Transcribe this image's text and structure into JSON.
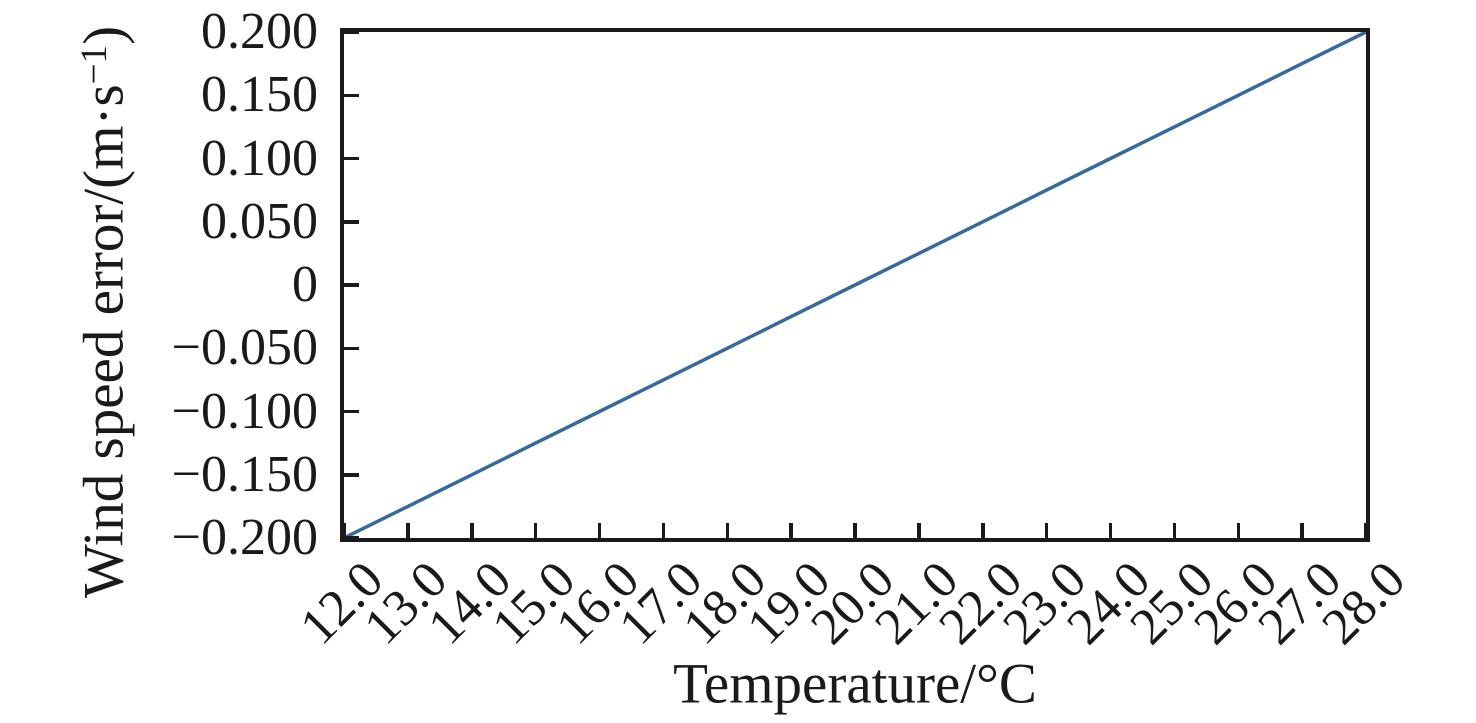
{
  "chart_data": {
    "type": "line",
    "title": "",
    "xlabel": "Temperature/°C",
    "ylabel": "Wind speed error/(m·s−1)",
    "ylabel_parts": {
      "prefix": "Wind speed error/(m·s",
      "superscript": "−1",
      "suffix": ")"
    },
    "xlim": [
      12.0,
      28.0
    ],
    "ylim": [
      -0.2,
      0.2
    ],
    "grid": false,
    "legend_position": "none",
    "x_tick_labels": [
      "12.0",
      "13.0",
      "14.0",
      "15.0",
      "16.0",
      "17.0",
      "18.0",
      "19.0",
      "20.0",
      "21.0",
      "22.0",
      "23.0",
      "24.0",
      "25.0",
      "26.0",
      "27.0",
      "28.0"
    ],
    "y_tick_labels": [
      "0.200",
      "0.150",
      "0.100",
      "0.050",
      "0",
      "−0.050",
      "−0.100",
      "−0.150",
      "−0.200"
    ],
    "y_tick_values": [
      0.2,
      0.15,
      0.1,
      0.05,
      0,
      -0.05,
      -0.1,
      -0.15,
      -0.2
    ],
    "series": [
      {
        "name": "wind-speed-error-vs-temperature",
        "color": "#38699C",
        "x": [
          12.0,
          13.0,
          14.0,
          15.0,
          16.0,
          17.0,
          18.0,
          19.0,
          20.0,
          21.0,
          22.0,
          23.0,
          24.0,
          25.0,
          26.0,
          27.0,
          28.0
        ],
        "y": [
          -0.2,
          -0.175,
          -0.15,
          -0.125,
          -0.1,
          -0.075,
          -0.05,
          -0.025,
          0.0,
          0.025,
          0.05,
          0.075,
          0.1,
          0.125,
          0.15,
          0.175,
          0.2
        ]
      }
    ]
  },
  "colors": {
    "line": "#38699C",
    "axis": "#1a1a1a",
    "background": "#ffffff"
  }
}
